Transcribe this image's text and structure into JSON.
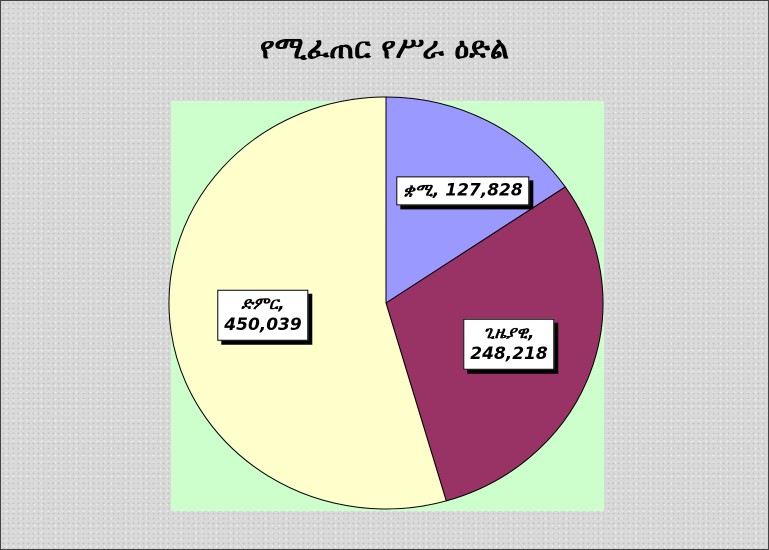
{
  "chart_data": {
    "type": "pie",
    "title": "የሚፈጠር የሥራ ዕድል",
    "values": [
      127828,
      248218,
      450039
    ],
    "value_labels": [
      "ቋሚ, 127,828",
      "ጊዜያዊ,\n248,218",
      "ድምር,\n450,039"
    ],
    "colors": [
      "#9999ff",
      "#993366",
      "#ffffcc"
    ],
    "plot_background": "#ccffcc"
  }
}
